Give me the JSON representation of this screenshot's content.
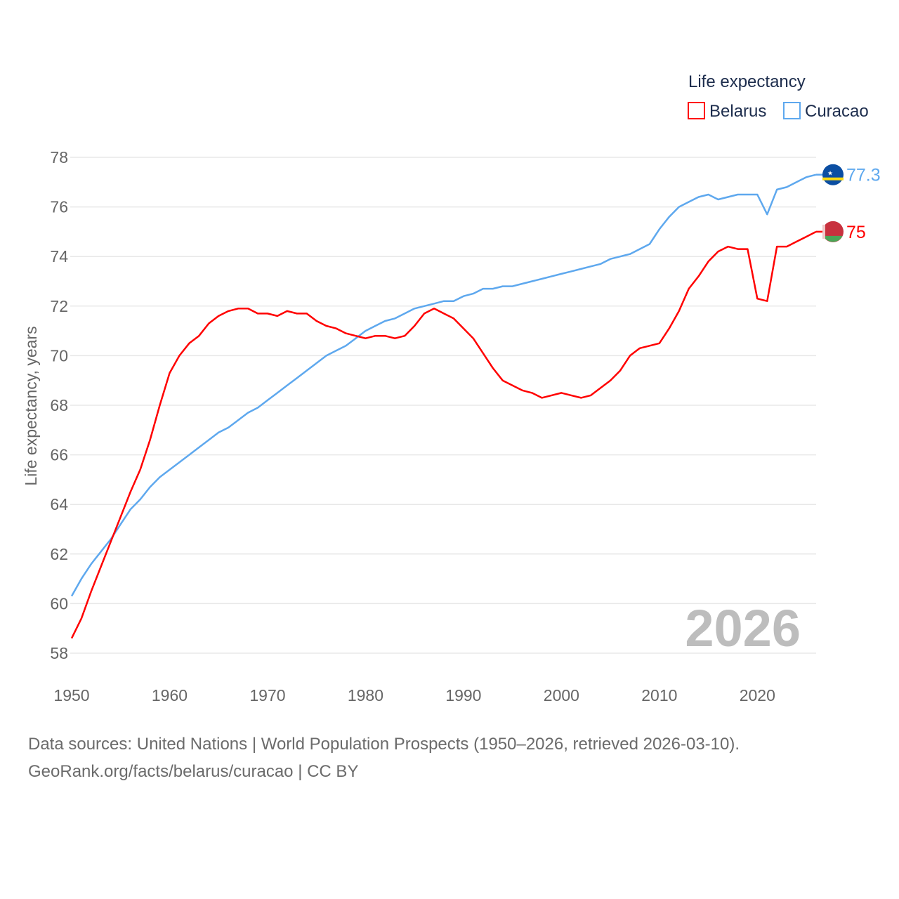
{
  "chart_data": {
    "type": "line",
    "title": "",
    "ylabel": "Life expectancy, years",
    "xlabel": "",
    "xlim": [
      1950,
      2026
    ],
    "ylim": [
      57,
      78.5
    ],
    "yticks": [
      58,
      60,
      62,
      64,
      66,
      68,
      70,
      72,
      74,
      76,
      78
    ],
    "xticks": [
      1950,
      1960,
      1970,
      1980,
      1990,
      2000,
      2010,
      2020
    ],
    "grid": true,
    "legend": {
      "title": "Life expectancy",
      "placement": "top-right"
    },
    "year_label": "2026",
    "x": [
      1950,
      1951,
      1952,
      1953,
      1954,
      1955,
      1956,
      1957,
      1958,
      1959,
      1960,
      1961,
      1962,
      1963,
      1964,
      1965,
      1966,
      1967,
      1968,
      1969,
      1970,
      1971,
      1972,
      1973,
      1974,
      1975,
      1976,
      1977,
      1978,
      1979,
      1980,
      1981,
      1982,
      1983,
      1984,
      1985,
      1986,
      1987,
      1988,
      1989,
      1990,
      1991,
      1992,
      1993,
      1994,
      1995,
      1996,
      1997,
      1998,
      1999,
      2000,
      2001,
      2002,
      2003,
      2004,
      2005,
      2006,
      2007,
      2008,
      2009,
      2010,
      2011,
      2012,
      2013,
      2014,
      2015,
      2016,
      2017,
      2018,
      2019,
      2020,
      2021,
      2022,
      2023,
      2024,
      2025,
      2026
    ],
    "series": [
      {
        "name": "Belarus",
        "color": "#ff0000",
        "end_label": "75",
        "values": [
          58.6,
          59.4,
          60.5,
          61.5,
          62.5,
          63.5,
          64.5,
          65.4,
          66.6,
          68.0,
          69.3,
          70.0,
          70.5,
          70.8,
          71.3,
          71.6,
          71.8,
          71.9,
          71.9,
          71.7,
          71.7,
          71.6,
          71.8,
          71.7,
          71.7,
          71.4,
          71.2,
          71.1,
          70.9,
          70.8,
          70.7,
          70.8,
          70.8,
          70.7,
          70.8,
          71.2,
          71.7,
          71.9,
          71.7,
          71.5,
          71.1,
          70.7,
          70.1,
          69.5,
          69.0,
          68.8,
          68.6,
          68.5,
          68.3,
          68.4,
          68.5,
          68.4,
          68.3,
          68.4,
          68.7,
          69.0,
          69.4,
          70.0,
          70.3,
          70.4,
          70.5,
          71.1,
          71.8,
          72.7,
          73.2,
          73.8,
          74.2,
          74.4,
          74.3,
          74.3,
          72.3,
          72.2,
          74.4,
          74.4,
          74.6,
          74.8,
          75.0
        ]
      },
      {
        "name": "Curacao",
        "color": "#5ea8ee",
        "end_label": "77.3",
        "values": [
          60.3,
          61.0,
          61.6,
          62.1,
          62.6,
          63.2,
          63.8,
          64.2,
          64.7,
          65.1,
          65.4,
          65.7,
          66.0,
          66.3,
          66.6,
          66.9,
          67.1,
          67.4,
          67.7,
          67.9,
          68.2,
          68.5,
          68.8,
          69.1,
          69.4,
          69.7,
          70.0,
          70.2,
          70.4,
          70.7,
          71.0,
          71.2,
          71.4,
          71.5,
          71.7,
          71.9,
          72.0,
          72.1,
          72.2,
          72.2,
          72.4,
          72.5,
          72.7,
          72.7,
          72.8,
          72.8,
          72.9,
          73.0,
          73.1,
          73.2,
          73.3,
          73.4,
          73.5,
          73.6,
          73.7,
          73.9,
          74.0,
          74.1,
          74.3,
          74.5,
          75.1,
          75.6,
          76.0,
          76.2,
          76.4,
          76.5,
          76.3,
          76.4,
          76.5,
          76.5,
          76.5,
          75.7,
          76.7,
          76.8,
          77.0,
          77.2,
          77.3
        ]
      }
    ]
  },
  "footer": {
    "line1": "Data sources: United Nations | World Population Prospects (1950–2026, retrieved 2026-03-10).",
    "line2": "GeoRank.org/facts/belarus/curacao | CC BY"
  }
}
